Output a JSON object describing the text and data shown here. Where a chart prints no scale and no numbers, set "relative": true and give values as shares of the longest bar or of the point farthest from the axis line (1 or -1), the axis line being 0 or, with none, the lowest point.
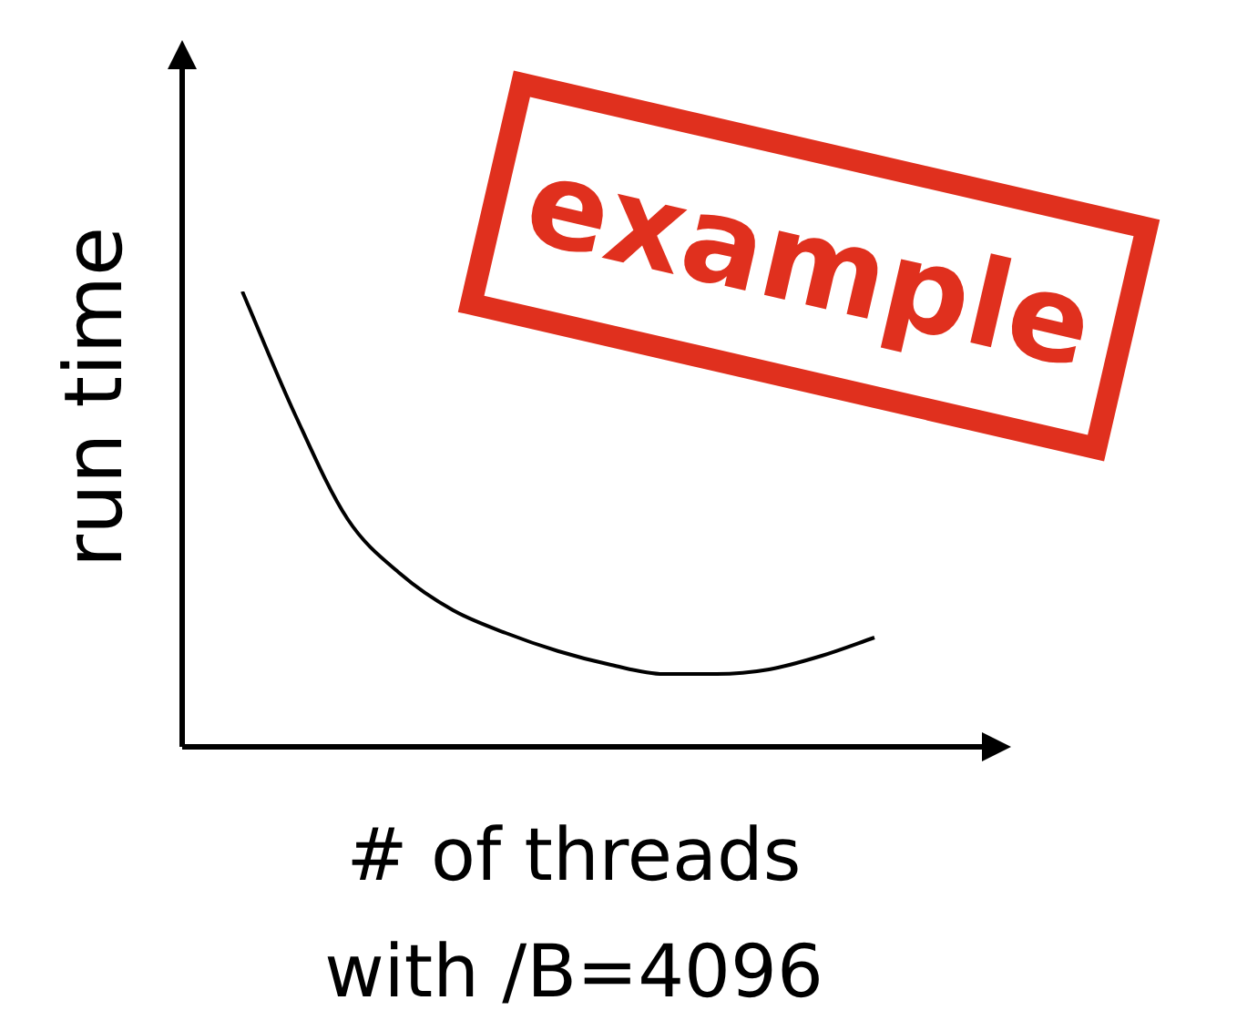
{
  "chart_data": {
    "type": "line",
    "relative": true,
    "xlabel": "# of threads with /B=4096",
    "ylabel": "run time",
    "annotations": [
      "example"
    ],
    "categories": [
      null,
      null,
      null,
      null,
      null,
      null,
      null,
      null,
      null,
      null,
      null,
      null,
      null
    ],
    "series": [
      {
        "color": "#000000",
        "values": [
          1,
          0.73,
          0.5,
          0.38,
          0.3,
          0.25,
          0.21,
          0.18,
          0.16,
          0.16,
          0.17,
          0.2,
          0.24
        ]
      }
    ]
  }
}
